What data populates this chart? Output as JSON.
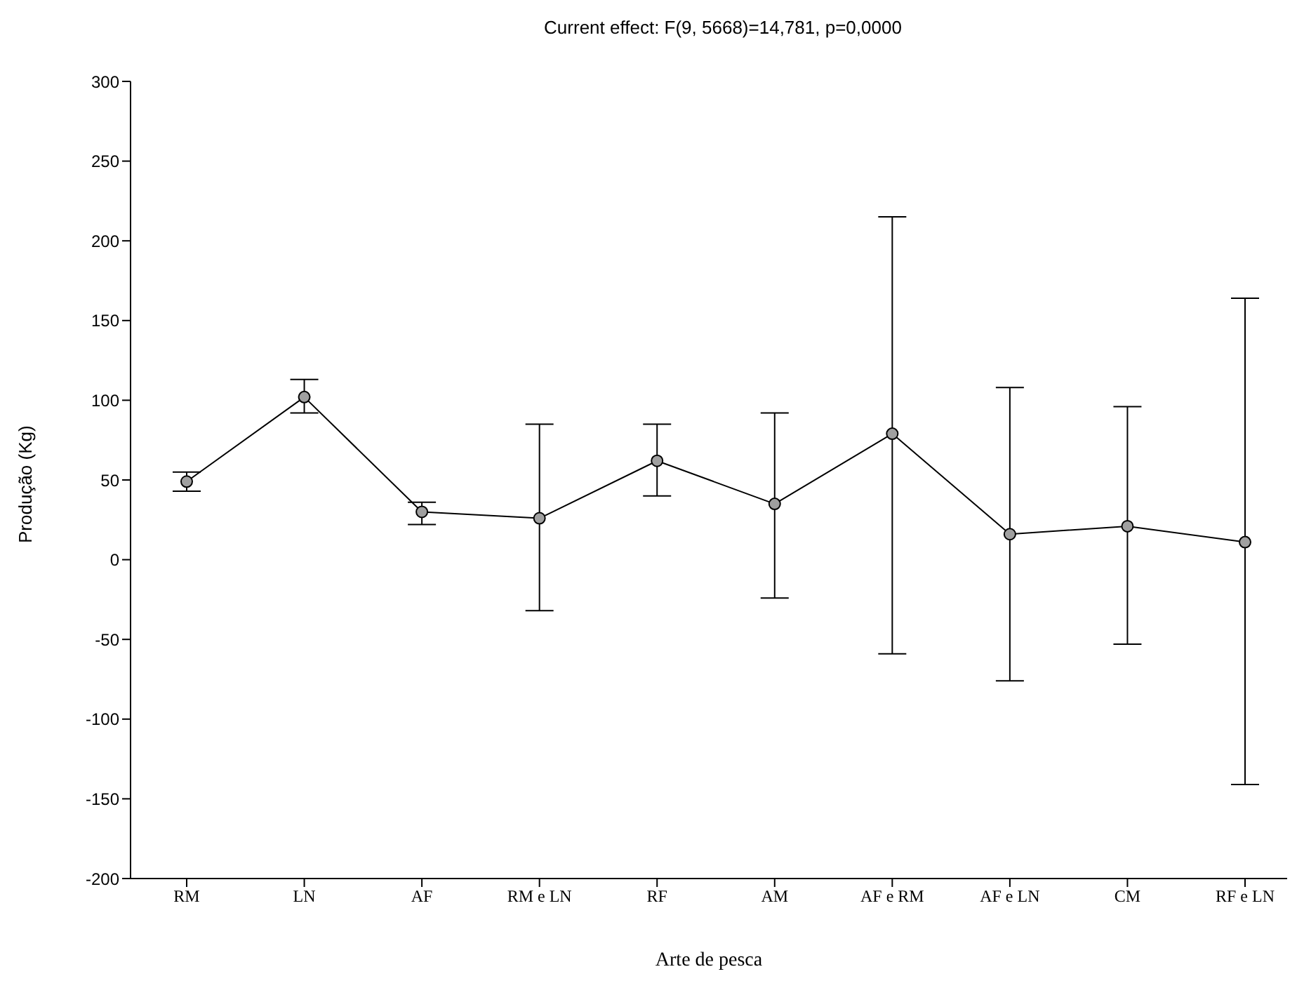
{
  "chart_data": {
    "type": "line",
    "title": "Current effect: F(9, 5668)=14,781, p=0,0000",
    "xlabel": "Arte de pesca",
    "ylabel": "Produção (Kg)",
    "categories": [
      "RM",
      "LN",
      "AF",
      "RM e LN",
      "RF",
      "AM",
      "AF e RM",
      "AF e LN",
      "CM",
      "RF e LN"
    ],
    "series": [
      {
        "color": "#000000",
        "values": [
          49,
          102,
          30,
          26,
          62,
          35,
          79,
          16,
          21,
          11
        ],
        "errors": [
          [
            43,
            55
          ],
          [
            92,
            113
          ],
          [
            22,
            36
          ],
          [
            -32,
            85
          ],
          [
            40,
            85
          ],
          [
            -24,
            92
          ],
          [
            -59,
            215
          ],
          [
            -76,
            108
          ],
          [
            -53,
            96
          ],
          [
            -141,
            164
          ]
        ]
      }
    ],
    "ylim": [
      -200,
      300
    ],
    "yticks": [
      -200,
      -150,
      -100,
      -50,
      0,
      50,
      100,
      150,
      200,
      250,
      300
    ],
    "grid": false,
    "marker": "circle",
    "line_style": "solid"
  }
}
